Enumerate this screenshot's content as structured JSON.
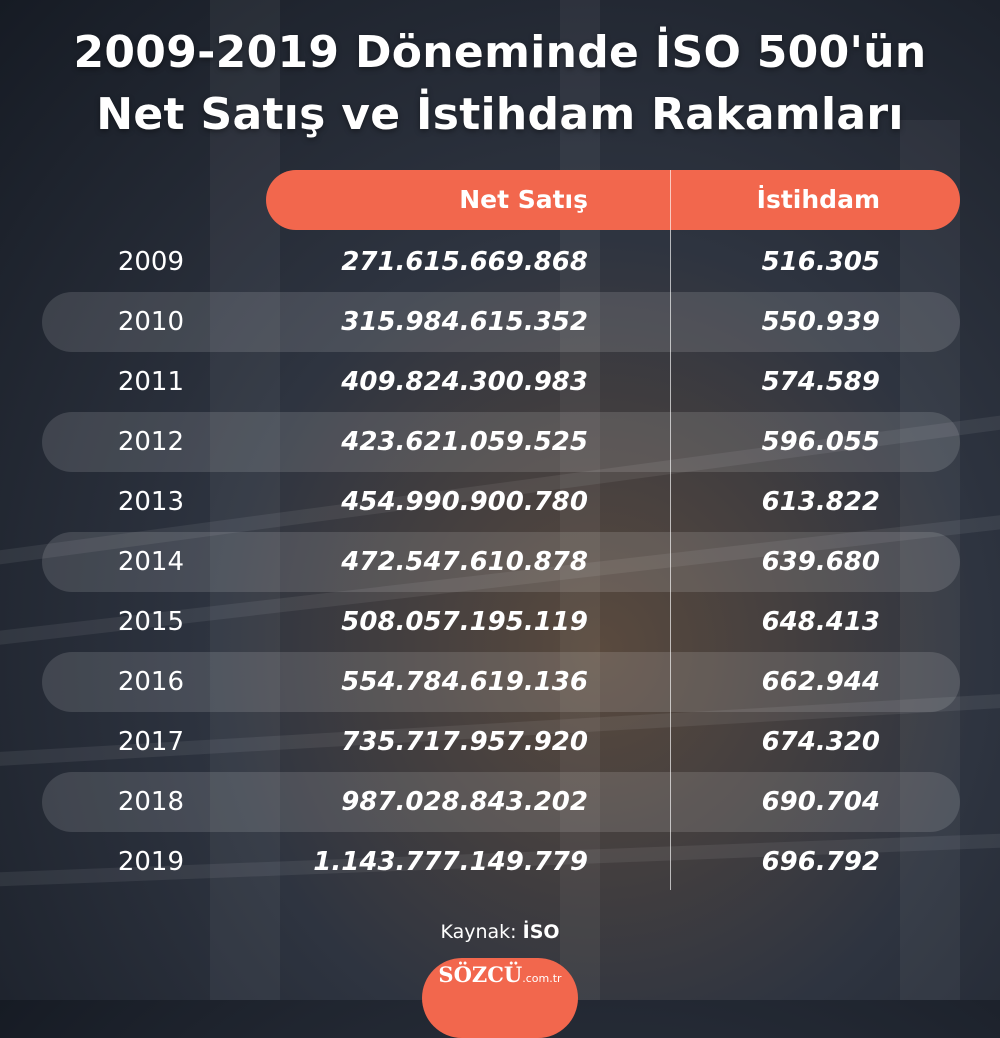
{
  "title": {
    "line1": "2009-2019 Döneminde İSO 500'ün",
    "line2": "Net Satış ve İstihdam Rakamları"
  },
  "colors": {
    "accent": "#f2674d",
    "row_band": "rgba(255,255,255,0.13)",
    "text": "#ffffff"
  },
  "chart_data": {
    "type": "table",
    "columns": [
      "Net Satış",
      "İstihdam"
    ],
    "rows": [
      {
        "year": "2009",
        "net_satis": "271.615.669.868",
        "istihdam": "516.305"
      },
      {
        "year": "2010",
        "net_satis": "315.984.615.352",
        "istihdam": "550.939"
      },
      {
        "year": "2011",
        "net_satis": "409.824.300.983",
        "istihdam": "574.589"
      },
      {
        "year": "2012",
        "net_satis": "423.621.059.525",
        "istihdam": "596.055"
      },
      {
        "year": "2013",
        "net_satis": "454.990.900.780",
        "istihdam": "613.822"
      },
      {
        "year": "2014",
        "net_satis": "472.547.610.878",
        "istihdam": "639.680"
      },
      {
        "year": "2015",
        "net_satis": "508.057.195.119",
        "istihdam": "648.413"
      },
      {
        "year": "2016",
        "net_satis": "554.784.619.136",
        "istihdam": "662.944"
      },
      {
        "year": "2017",
        "net_satis": "735.717.957.920",
        "istihdam": "674.320"
      },
      {
        "year": "2018",
        "net_satis": "987.028.843.202",
        "istihdam": "690.704"
      },
      {
        "year": "2019",
        "net_satis": "1.143.777.149.779",
        "istihdam": "696.792"
      }
    ],
    "banded_rows": [
      "2010",
      "2012",
      "2014",
      "2016",
      "2018"
    ]
  },
  "source": {
    "label": "Kaynak:",
    "value": "İSO"
  },
  "logo": {
    "name": "SÖZCÜ",
    "suffix": ".com.tr"
  }
}
